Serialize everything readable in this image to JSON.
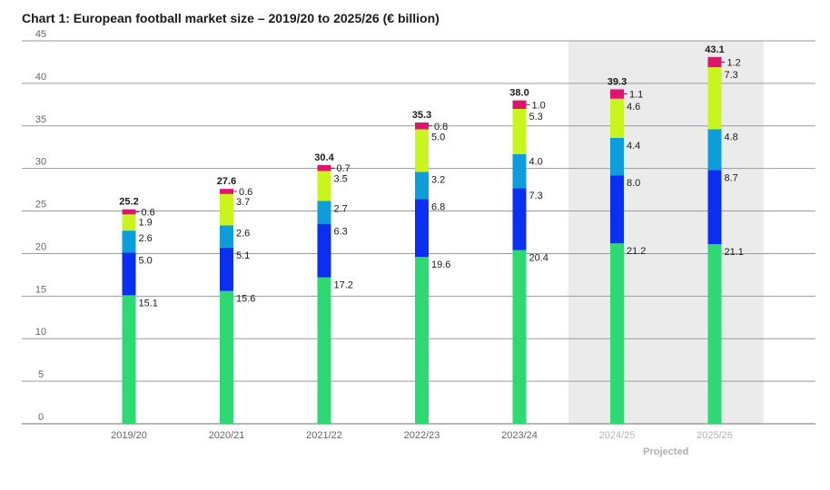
{
  "chart_data": {
    "type": "bar",
    "stacked": true,
    "title": "Chart 1: European football market size – 2019/20 to 2025/26 (€ billion)",
    "categories": [
      "2019/20",
      "2020/21",
      "2021/22",
      "2022/23",
      "2023/24",
      "2024/25",
      "2025/26"
    ],
    "series": [
      {
        "values": [
          15.1,
          15.6,
          17.2,
          19.6,
          20.4,
          21.2,
          21.1
        ],
        "color": "#2ed873"
      },
      {
        "values": [
          5.0,
          5.1,
          6.3,
          6.8,
          7.3,
          8.0,
          8.7
        ],
        "color": "#0a2ff0"
      },
      {
        "values": [
          2.6,
          2.6,
          2.7,
          3.2,
          4.0,
          4.4,
          4.8
        ],
        "color": "#0e9ddb"
      },
      {
        "values": [
          1.9,
          3.7,
          3.5,
          5.0,
          5.3,
          4.6,
          7.3
        ],
        "color": "#c8f51e"
      },
      {
        "values": [
          0.6,
          0.6,
          0.7,
          0.8,
          1.0,
          1.1,
          1.2
        ],
        "color": "#e0136f"
      }
    ],
    "totals": [
      25.2,
      27.6,
      30.4,
      35.3,
      38.0,
      39.3,
      43.1
    ],
    "value_labels": [
      [
        "15.1",
        "15.6",
        "17.2",
        "19.6",
        "20.4",
        "21.2",
        "21.1"
      ],
      [
        "5.0",
        "5.1",
        "6.3",
        "6.8",
        "7.3",
        "8.0",
        "8.7"
      ],
      [
        "2.6",
        "2.6",
        "2.7",
        "3.2",
        "4.0",
        "4.4",
        "4.8"
      ],
      [
        "1.9",
        "3.7",
        "3.5",
        "5.0",
        "5.3",
        "4.6",
        "7.3"
      ],
      [
        "0.6",
        "0.6",
        "0.7",
        "0.8",
        "1.0",
        "1.1",
        "1.2"
      ]
    ],
    "total_labels": [
      "25.2",
      "27.6",
      "30.4",
      "35.3",
      "38.0",
      "39.3",
      "43.1"
    ],
    "y_ticks": [
      "0",
      "5",
      "10",
      "15",
      "20",
      "25",
      "30",
      "35",
      "40",
      "45"
    ],
    "ylim": [
      0,
      45
    ],
    "grid": true,
    "projected_from_index": 5,
    "projected_label": "Projected",
    "projected_shading_color": "#ebebeb"
  }
}
